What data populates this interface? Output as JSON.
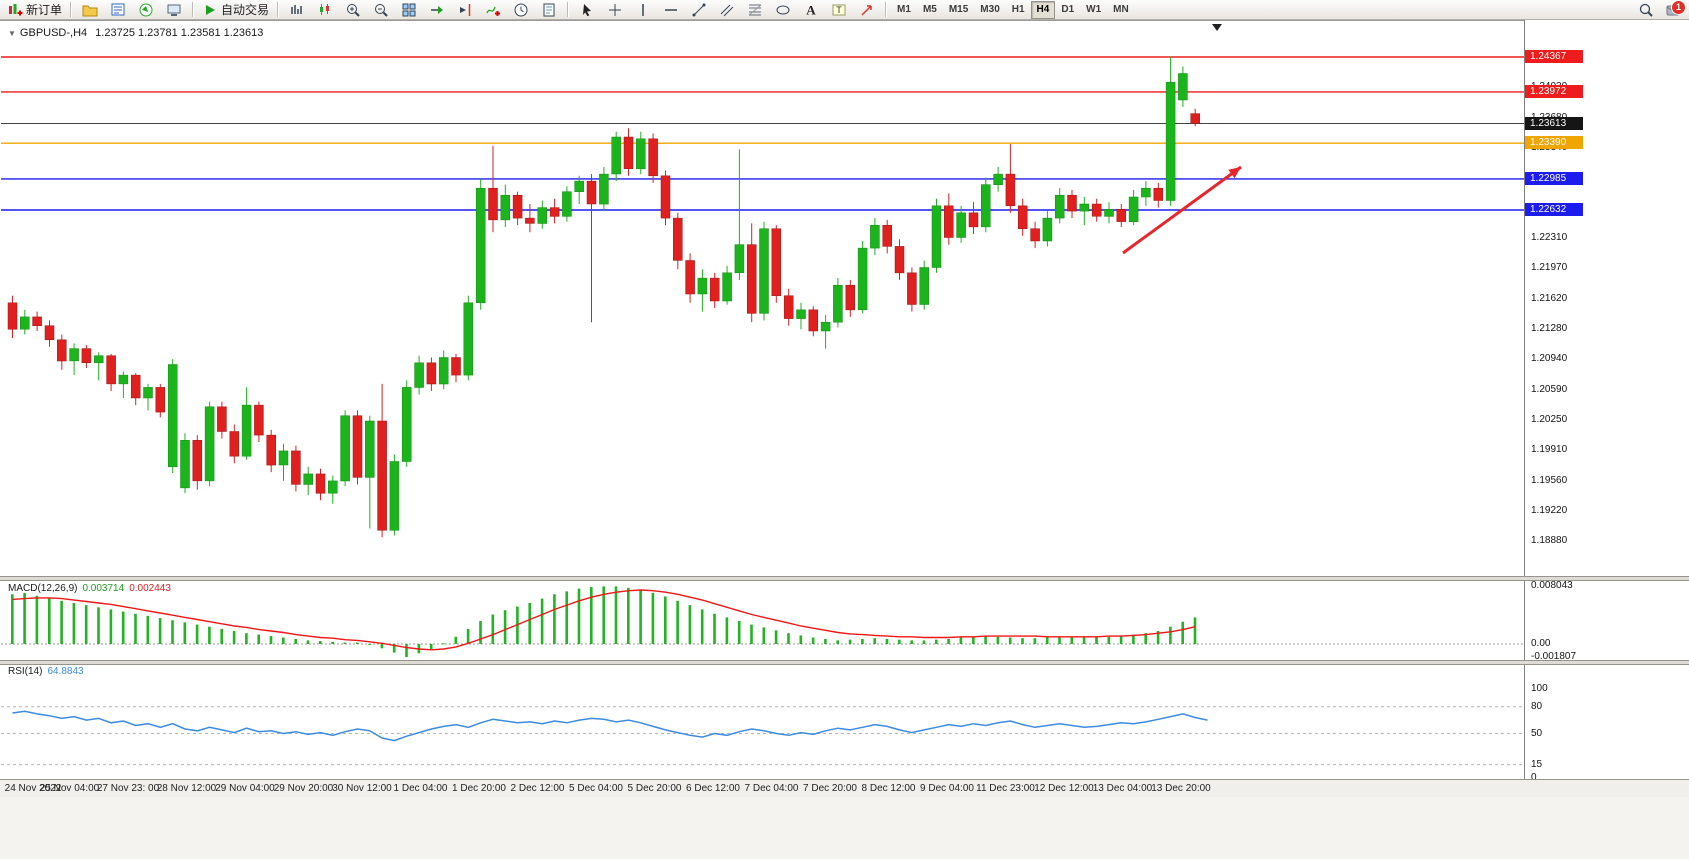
{
  "toolbar": {
    "new_order": {
      "icon": "new-order-icon",
      "label": "新订单"
    },
    "window_icons": [
      "profiles-icon",
      "market-watch-icon",
      "navigator-icon",
      "terminal-icon"
    ],
    "autotrading": {
      "icon": "autotrading-icon",
      "label": "自动交易"
    },
    "chart_icons": [
      "bar-chart-icon",
      "candlestick-chart-icon",
      "zoom-in-icon",
      "zoom-out-icon",
      "tile-windows-icon",
      "auto-scroll-icon",
      "chart-shift-icon",
      "add-indicator-icon",
      "periods-icon",
      "templates-icon"
    ],
    "drawing_icons": [
      "cursor-icon",
      "crosshair-icon",
      "vertical-line-icon",
      "horizontal-line-icon",
      "trendline-icon",
      "equidistant-channel-icon",
      "fibonacci-icon",
      "shapes-icon",
      "text-icon",
      "text-label-icon",
      "arrows-icon"
    ],
    "timeframes": [
      {
        "label": "M1"
      },
      {
        "label": "M5"
      },
      {
        "label": "M15"
      },
      {
        "label": "M30"
      },
      {
        "label": "H1"
      },
      {
        "label": "H4",
        "active": true
      },
      {
        "label": "D1"
      },
      {
        "label": "W1"
      },
      {
        "label": "MN"
      }
    ],
    "right_icons": [
      "search-icon",
      "news-icon"
    ],
    "notification_count": "1"
  },
  "chart": {
    "symbol_title": "GBPUSD-,H4",
    "ohlc_text": "1.23725 1.23781 1.23581 1.23613"
  },
  "chart_data": {
    "type": "candlestick",
    "symbol": "GBPUSD-",
    "timeframe": "H4",
    "last_ohlc": {
      "open": "1.23725",
      "high": "1.23781",
      "low": "1.23581",
      "close": "1.23613"
    },
    "ylim": [
      1.18527,
      1.24719
    ],
    "colors": {
      "up": "#1cb41c",
      "up_stroke": "#0f8a0f",
      "down": "#e01f1f",
      "down_stroke": "#9c1414",
      "bid_line": "#444444"
    },
    "levels": [
      {
        "price": 1.24367,
        "color": "#ee1c1c",
        "label": "1.24367"
      },
      {
        "price": 1.23972,
        "color": "#ee1c1c",
        "label": "1.23972"
      },
      {
        "price": 1.2339,
        "color": "#f0a500",
        "label": "1.23390"
      },
      {
        "price": 1.22985,
        "color": "#1c1cee",
        "label": "1.22985"
      },
      {
        "price": 1.22632,
        "color": "#1c1cee",
        "label": "1.22632"
      }
    ],
    "current_price": {
      "price": 1.23613,
      "color": "#151515",
      "label": "1.23613"
    },
    "axis_ticks": [
      "1.24030",
      "1.23680",
      "1.23340",
      "1.22990",
      "1.22650",
      "1.22310",
      "1.21970",
      "1.21620",
      "1.21280",
      "1.20940",
      "1.20590",
      "1.20250",
      "1.19910",
      "1.19560",
      "1.19220",
      "1.18880"
    ],
    "time_labels": [
      "24 Nov 2022",
      "25 Nov 04:00",
      "27 Nov 23: 00",
      "28 Nov 12:00",
      "29 Nov 04:00",
      "29 Nov 20:00",
      "30 Nov 12:00",
      "1 Dec 04:00",
      "1 Dec 20:00",
      "2 Dec 12:00",
      "5 Dec 04:00",
      "5 Dec 20:00",
      "6 Dec 12:00",
      "7 Dec 04:00",
      "7 Dec 20:00",
      "8 Dec 12:00",
      "9 Dec 04:00",
      "11 Dec 23:00",
      "12 Dec 12:00",
      "13 Dec 04:00",
      "13 Dec 20:00"
    ],
    "annotations": [
      {
        "type": "arrow",
        "color": "#e8252c",
        "from": [
          1123,
          253
        ],
        "to": [
          1241,
          167
        ]
      }
    ],
    "candles": [
      [
        1.2158,
        1.2166,
        1.2118,
        1.2128
      ],
      [
        1.2128,
        1.215,
        1.2122,
        1.2142
      ],
      [
        1.2142,
        1.2148,
        1.2126,
        1.2132
      ],
      [
        1.2132,
        1.2138,
        1.2108,
        1.2116
      ],
      [
        1.2116,
        1.2122,
        1.2082,
        1.2092
      ],
      [
        1.2092,
        1.2112,
        1.2076,
        1.2106
      ],
      [
        1.2106,
        1.211,
        1.2084,
        1.209
      ],
      [
        1.209,
        1.2102,
        1.207,
        1.2098
      ],
      [
        1.2098,
        1.21,
        1.2058,
        1.2066
      ],
      [
        1.2066,
        1.208,
        1.205,
        1.2076
      ],
      [
        1.2076,
        1.2078,
        1.2042,
        1.205
      ],
      [
        1.205,
        1.2066,
        1.2036,
        1.2062
      ],
      [
        1.2062,
        1.2066,
        1.2028,
        1.2034
      ],
      [
        1.1972,
        1.2094,
        1.1965,
        1.2088
      ],
      [
        1.1948,
        1.201,
        1.1942,
        1.2002
      ],
      [
        1.2002,
        1.2008,
        1.1946,
        1.1956
      ],
      [
        1.1956,
        1.2046,
        1.195,
        1.204
      ],
      [
        1.204,
        1.2046,
        1.2004,
        1.2012
      ],
      [
        1.2012,
        1.202,
        1.1976,
        1.1984
      ],
      [
        1.1984,
        1.2062,
        1.198,
        1.2042
      ],
      [
        1.2042,
        1.2046,
        1.2,
        1.2008
      ],
      [
        1.2008,
        1.2014,
        1.1966,
        1.1974
      ],
      [
        1.1974,
        1.1998,
        1.1956,
        1.199
      ],
      [
        1.199,
        1.1996,
        1.1944,
        1.1952
      ],
      [
        1.1952,
        1.1972,
        1.194,
        1.1964
      ],
      [
        1.1964,
        1.197,
        1.1934,
        1.1942
      ],
      [
        1.1942,
        1.1962,
        1.193,
        1.1956
      ],
      [
        1.1956,
        1.2036,
        1.195,
        1.203
      ],
      [
        1.203,
        1.2036,
        1.1952,
        1.196
      ],
      [
        1.196,
        1.203,
        1.1902,
        1.2024
      ],
      [
        1.2024,
        1.2066,
        1.1892,
        1.19
      ],
      [
        1.19,
        1.1986,
        1.1894,
        1.1978
      ],
      [
        1.1978,
        1.207,
        1.1972,
        1.2062
      ],
      [
        1.2062,
        1.2098,
        1.2054,
        1.209
      ],
      [
        1.209,
        1.2096,
        1.2058,
        1.2066
      ],
      [
        1.2066,
        1.2104,
        1.206,
        1.2096
      ],
      [
        1.2096,
        1.21,
        1.2068,
        1.2076
      ],
      [
        1.2076,
        1.2166,
        1.207,
        1.2158
      ],
      [
        1.2158,
        1.2298,
        1.215,
        1.2288
      ],
      [
        1.2288,
        1.2336,
        1.2238,
        1.2252
      ],
      [
        1.2252,
        1.2292,
        1.2244,
        1.228
      ],
      [
        1.228,
        1.2284,
        1.2246,
        1.2254
      ],
      [
        1.2254,
        1.227,
        1.2238,
        1.2248
      ],
      [
        1.2248,
        1.2274,
        1.2242,
        1.2266
      ],
      [
        1.2266,
        1.2276,
        1.2248,
        1.2256
      ],
      [
        1.2256,
        1.229,
        1.225,
        1.2284
      ],
      [
        1.2284,
        1.2302,
        1.227,
        1.2296
      ],
      [
        1.2296,
        1.2304,
        1.2136,
        1.227
      ],
      [
        1.227,
        1.2312,
        1.2262,
        1.2304
      ],
      [
        1.2304,
        1.2352,
        1.2296,
        1.2346
      ],
      [
        1.2346,
        1.2356,
        1.2302,
        1.231
      ],
      [
        1.231,
        1.2352,
        1.2304,
        1.2344
      ],
      [
        1.2344,
        1.235,
        1.2294,
        1.2302
      ],
      [
        1.2302,
        1.2308,
        1.2246,
        1.2254
      ],
      [
        1.2254,
        1.226,
        1.2196,
        1.2206
      ],
      [
        1.2206,
        1.2214,
        1.2158,
        1.2168
      ],
      [
        1.2168,
        1.2196,
        1.2148,
        1.2186
      ],
      [
        1.2186,
        1.2192,
        1.2152,
        1.216
      ],
      [
        1.216,
        1.22,
        1.2156,
        1.2192
      ],
      [
        1.2192,
        1.2332,
        1.2184,
        1.2224
      ],
      [
        1.2224,
        1.2248,
        1.2136,
        1.2146
      ],
      [
        1.2146,
        1.225,
        1.2138,
        1.2242
      ],
      [
        1.2242,
        1.2246,
        1.2158,
        1.2166
      ],
      [
        1.2166,
        1.2174,
        1.2132,
        1.214
      ],
      [
        1.214,
        1.2158,
        1.2128,
        1.215
      ],
      [
        1.215,
        1.2154,
        1.212,
        1.2126
      ],
      [
        1.2126,
        1.2144,
        1.2106,
        1.2136
      ],
      [
        1.2136,
        1.2186,
        1.213,
        1.2178
      ],
      [
        1.2178,
        1.2184,
        1.2142,
        1.215
      ],
      [
        1.215,
        1.2228,
        1.2146,
        1.222
      ],
      [
        1.222,
        1.2254,
        1.2212,
        1.2246
      ],
      [
        1.2246,
        1.2252,
        1.2214,
        1.2222
      ],
      [
        1.2222,
        1.223,
        1.2184,
        1.2192
      ],
      [
        1.2192,
        1.2198,
        1.2148,
        1.2156
      ],
      [
        1.2156,
        1.2206,
        1.215,
        1.2198
      ],
      [
        1.2198,
        1.2276,
        1.2192,
        1.2268
      ],
      [
        1.2268,
        1.2282,
        1.2224,
        1.2232
      ],
      [
        1.2232,
        1.2268,
        1.2226,
        1.226
      ],
      [
        1.226,
        1.2272,
        1.2236,
        1.2244
      ],
      [
        1.2244,
        1.23,
        1.2238,
        1.2292
      ],
      [
        1.2292,
        1.2312,
        1.2284,
        1.2304
      ],
      [
        1.2304,
        1.2338,
        1.226,
        1.2268
      ],
      [
        1.2268,
        1.2276,
        1.2234,
        1.2242
      ],
      [
        1.2242,
        1.225,
        1.222,
        1.2228
      ],
      [
        1.2228,
        1.2262,
        1.2222,
        1.2254
      ],
      [
        1.2254,
        1.2288,
        1.2248,
        1.228
      ],
      [
        1.228,
        1.2286,
        1.2254,
        1.2262
      ],
      [
        1.2262,
        1.2278,
        1.2246,
        1.227
      ],
      [
        1.227,
        1.2276,
        1.225,
        1.2256
      ],
      [
        1.2256,
        1.2272,
        1.2248,
        1.2264
      ],
      [
        1.2264,
        1.227,
        1.2244,
        1.225
      ],
      [
        1.225,
        1.2286,
        1.2246,
        1.2278
      ],
      [
        1.2278,
        1.2296,
        1.2268,
        1.2288
      ],
      [
        1.2288,
        1.2294,
        1.2266,
        1.2274
      ],
      [
        1.2274,
        1.2437,
        1.2268,
        1.2408
      ],
      [
        1.2388,
        1.2426,
        1.238,
        1.2418
      ],
      [
        1.23725,
        1.23781,
        1.23581,
        1.23613
      ]
    ],
    "macd": {
      "label": "MACD(12,26,9)",
      "value_main": "0.003714",
      "value_signal": "0.002443",
      "scale": [
        "0.008043",
        "0.00",
        "-0.001807"
      ],
      "hist_color": "#22b422",
      "signal_color": "#f01616",
      "histogram": [
        0.0069,
        0.0071,
        0.0067,
        0.0064,
        0.006,
        0.0057,
        0.0054,
        0.0051,
        0.0048,
        0.0045,
        0.0042,
        0.0039,
        0.0036,
        0.0033,
        0.003,
        0.0027,
        0.0024,
        0.0021,
        0.0018,
        0.0015,
        0.0013,
        0.0011,
        0.0009,
        0.0007,
        0.0005,
        0.0004,
        0.0003,
        0.0002,
        0.0002,
        -0.0001,
        -0.0006,
        -0.0012,
        -0.0018,
        -0.0013,
        -0.0007,
        0.0001,
        0.001,
        0.0021,
        0.0032,
        0.0041,
        0.0047,
        0.0052,
        0.0057,
        0.0063,
        0.0069,
        0.0073,
        0.0077,
        0.0079,
        0.008,
        0.008,
        0.0078,
        0.0075,
        0.0071,
        0.0066,
        0.006,
        0.0054,
        0.0048,
        0.0042,
        0.0037,
        0.0032,
        0.0027,
        0.0023,
        0.0019,
        0.0015,
        0.0012,
        0.0009,
        0.0007,
        0.0005,
        0.0006,
        0.0007,
        0.0008,
        0.0007,
        0.0006,
        0.0005,
        0.0005,
        0.0006,
        0.0007,
        0.0009,
        0.001,
        0.0011,
        0.001,
        0.0009,
        0.0008,
        0.0008,
        0.0009,
        0.001,
        0.001,
        0.0009,
        0.0009,
        0.001,
        0.0011,
        0.0013,
        0.0015,
        0.0018,
        0.0024,
        0.0031,
        0.0037
      ],
      "signal": [
        0.0062,
        0.0063,
        0.0064,
        0.0064,
        0.0063,
        0.0061,
        0.0059,
        0.0057,
        0.0055,
        0.0052,
        0.0049,
        0.0046,
        0.0043,
        0.004,
        0.0037,
        0.0034,
        0.0031,
        0.0028,
        0.0025,
        0.0023,
        0.002,
        0.0018,
        0.0016,
        0.0013,
        0.0011,
        0.0009,
        0.0008,
        0.0006,
        0.0005,
        0.0003,
        0.0001,
        -0.0002,
        -0.0005,
        -0.0007,
        -0.0008,
        -0.0007,
        -0.0004,
        0.0001,
        0.0007,
        0.0013,
        0.002,
        0.0027,
        0.0034,
        0.0041,
        0.0048,
        0.0054,
        0.006,
        0.0065,
        0.0069,
        0.0072,
        0.0074,
        0.0075,
        0.0074,
        0.0072,
        0.0069,
        0.0065,
        0.0061,
        0.0056,
        0.0051,
        0.0046,
        0.0041,
        0.0037,
        0.0033,
        0.0029,
        0.0025,
        0.0022,
        0.0019,
        0.0016,
        0.0014,
        0.0013,
        0.0012,
        0.0011,
        0.001,
        0.001,
        0.0009,
        0.0009,
        0.0009,
        0.001,
        0.001,
        0.0011,
        0.0011,
        0.0011,
        0.0011,
        0.0011,
        0.001,
        0.001,
        0.001,
        0.001,
        0.001,
        0.0011,
        0.0011,
        0.0012,
        0.0013,
        0.0015,
        0.0017,
        0.002,
        0.0024
      ]
    },
    "rsi": {
      "label": "RSI(14)",
      "value": "64.8843",
      "scale": [
        "100",
        "80",
        "50",
        "15",
        "0"
      ],
      "levels": [
        80,
        50,
        15
      ],
      "color": "#3c8be0",
      "values": [
        73,
        75,
        72,
        70,
        67,
        69,
        65,
        67,
        62,
        64,
        59,
        61,
        57,
        61,
        55,
        53,
        57,
        54,
        51,
        56,
        52,
        53,
        50,
        52,
        49,
        51,
        48,
        52,
        55,
        53,
        45,
        42,
        47,
        51,
        55,
        58,
        60,
        57,
        62,
        66,
        64,
        62,
        63,
        61,
        64,
        62,
        65,
        67,
        66,
        63,
        65,
        62,
        58,
        54,
        51,
        48,
        46,
        50,
        48,
        52,
        55,
        53,
        50,
        48,
        51,
        49,
        53,
        56,
        54,
        57,
        60,
        58,
        54,
        51,
        54,
        57,
        60,
        58,
        61,
        59,
        62,
        64,
        60,
        57,
        59,
        61,
        59,
        57,
        58,
        60,
        62,
        61,
        63,
        66,
        69,
        72,
        68,
        65
      ]
    }
  }
}
